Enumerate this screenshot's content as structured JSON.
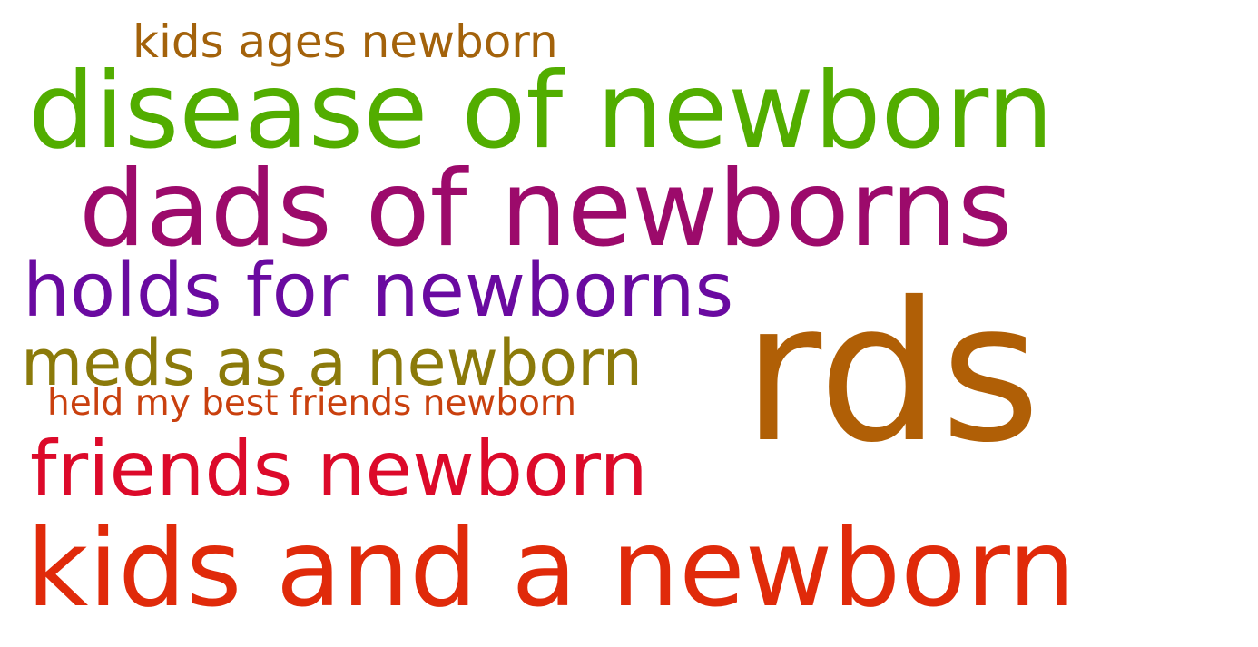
{
  "wordcloud": {
    "words": [
      {
        "text": "kids ages newborn",
        "color": "#a3620b"
      },
      {
        "text": "disease of newborn",
        "color": "#52ad00"
      },
      {
        "text": "dads of newborns",
        "color": "#9c0a6b"
      },
      {
        "text": "holds for newborns",
        "color": "#6a0aa0"
      },
      {
        "text": "rds",
        "color": "#b05f06"
      },
      {
        "text": "meds as a newborn",
        "color": "#8b7a0a"
      },
      {
        "text": "held my best friends newborn",
        "color": "#c9400e"
      },
      {
        "text": "friends newborn",
        "color": "#dc0a2a"
      },
      {
        "text": "kids and a newborn",
        "color": "#e02a0a"
      }
    ]
  }
}
